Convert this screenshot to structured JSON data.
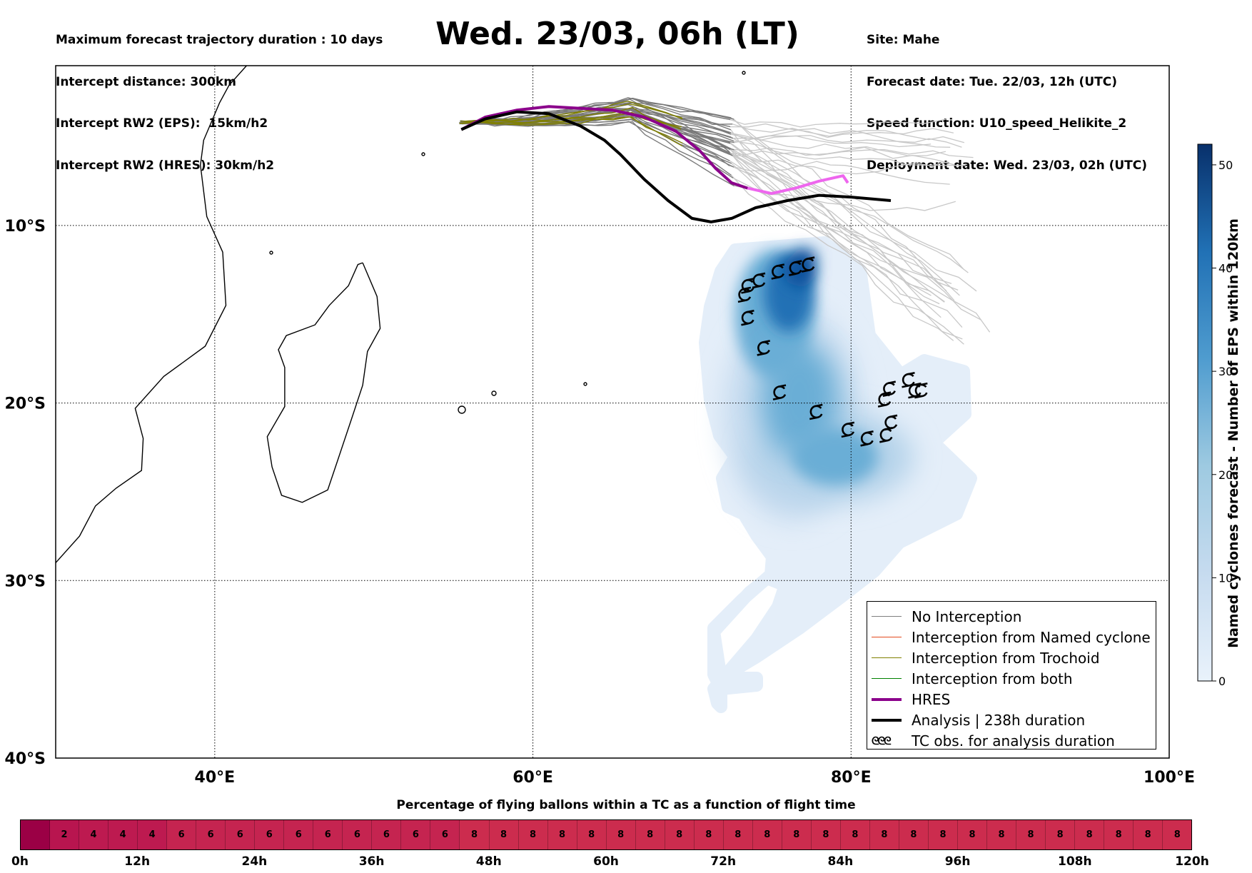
{
  "header_left": [
    "Maximum forecast trajectory duration : 10 days",
    "Intercept distance: 300km",
    "Intercept RW2 (EPS):  15km/h2",
    "Intercept RW2 (HRES): 30km/h2"
  ],
  "header_right": [
    "Site: Mahe",
    "Forecast date: Tue. 22/03, 12h (UTC)",
    "Speed function: U10_speed_Helikite_2",
    "Deployment date: Wed. 23/03, 02h (UTC)"
  ],
  "title": "Wed. 23/03, 06h (LT)",
  "map": {
    "lon_range": [
      30,
      100
    ],
    "lat_range": [
      -40,
      -1
    ],
    "lon_ticks": [
      {
        "value": 40,
        "label": "40°E"
      },
      {
        "value": 60,
        "label": "60°E"
      },
      {
        "value": 80,
        "label": "80°E"
      },
      {
        "value": 100,
        "label": "100°E"
      }
    ],
    "lat_ticks": [
      {
        "value": -10,
        "label": "10°S"
      },
      {
        "value": -20,
        "label": "20°S"
      },
      {
        "value": -30,
        "label": "30°S"
      },
      {
        "value": -40,
        "label": "40°S"
      }
    ],
    "grid": "dotted",
    "analysis_track": [
      [
        55.5,
        -4.6
      ],
      [
        57,
        -4.0
      ],
      [
        59,
        -3.6
      ],
      [
        61,
        -3.7
      ],
      [
        63,
        -4.4
      ],
      [
        64.5,
        -5.2
      ],
      [
        65.5,
        -6.0
      ],
      [
        67,
        -7.4
      ],
      [
        68.5,
        -8.6
      ],
      [
        70,
        -9.6
      ],
      [
        71.2,
        -9.8
      ],
      [
        72.5,
        -9.6
      ],
      [
        74,
        -9.0
      ],
      [
        76,
        -8.6
      ],
      [
        78,
        -8.3
      ],
      [
        80,
        -8.4
      ],
      [
        82.5,
        -8.6
      ]
    ],
    "hres_track": [
      [
        55.5,
        -4.6
      ],
      [
        57,
        -3.9
      ],
      [
        59,
        -3.5
      ],
      [
        61,
        -3.3
      ],
      [
        63,
        -3.4
      ],
      [
        65,
        -3.5
      ],
      [
        67,
        -3.9
      ],
      [
        69,
        -4.7
      ],
      [
        70.5,
        -5.8
      ],
      [
        71.5,
        -6.8
      ],
      [
        72.5,
        -7.6
      ],
      [
        73.5,
        -7.9
      ]
    ],
    "hres_track_end": [
      [
        73.5,
        -7.9
      ],
      [
        75,
        -8.2
      ],
      [
        76.5,
        -7.9
      ],
      [
        78,
        -7.5
      ],
      [
        79.5,
        -7.2
      ],
      [
        79.8,
        -7.6
      ]
    ],
    "tc_obs": [
      [
        73.3,
        -13.9
      ],
      [
        73.5,
        -13.4
      ],
      [
        74.2,
        -13.1
      ],
      [
        75.4,
        -12.6
      ],
      [
        76.5,
        -12.4
      ],
      [
        77.3,
        -12.2
      ],
      [
        73.5,
        -15.2
      ],
      [
        74.5,
        -16.9
      ],
      [
        75.5,
        -19.4
      ],
      [
        77.8,
        -20.5
      ],
      [
        79.8,
        -21.5
      ],
      [
        81.0,
        -22.0
      ],
      [
        82.2,
        -21.8
      ],
      [
        82.5,
        -21.1
      ],
      [
        82.1,
        -19.8
      ],
      [
        82.4,
        -19.2
      ],
      [
        83.6,
        -18.7
      ],
      [
        84.0,
        -19.3
      ],
      [
        84.4,
        -19.3
      ]
    ],
    "density_core": [
      [
        76.8,
        -11.2
      ],
      [
        77.8,
        -11.5
      ],
      [
        77.8,
        -12.8
      ],
      [
        77,
        -13.6
      ],
      [
        76,
        -13.2
      ],
      [
        75.7,
        -12.2
      ]
    ],
    "coast_africa": [
      [
        30,
        -29.0
      ],
      [
        31.5,
        -27.5
      ],
      [
        32.5,
        -25.8
      ],
      [
        33.8,
        -24.8
      ],
      [
        35.4,
        -23.8
      ],
      [
        35.5,
        -22.0
      ],
      [
        35.0,
        -20.3
      ],
      [
        36.8,
        -18.5
      ],
      [
        39.4,
        -16.8
      ],
      [
        40.7,
        -14.5
      ],
      [
        40.5,
        -11.5
      ],
      [
        39.5,
        -9.5
      ],
      [
        39.1,
        -6.6
      ],
      [
        39.3,
        -5.2
      ],
      [
        40.3,
        -3.1
      ],
      [
        40.9,
        -2.1
      ],
      [
        42.0,
        -1.0
      ]
    ],
    "coast_madagascar": [
      [
        49.3,
        -12.1
      ],
      [
        50.2,
        -14.0
      ],
      [
        50.4,
        -15.8
      ],
      [
        49.6,
        -17.1
      ],
      [
        49.3,
        -19.0
      ],
      [
        48.6,
        -20.9
      ],
      [
        47.7,
        -23.3
      ],
      [
        47.1,
        -24.9
      ],
      [
        45.5,
        -25.6
      ],
      [
        44.2,
        -25.2
      ],
      [
        43.6,
        -23.6
      ],
      [
        43.3,
        -21.9
      ],
      [
        44.4,
        -20.2
      ],
      [
        44.4,
        -18.0
      ],
      [
        44.0,
        -17.0
      ],
      [
        44.5,
        -16.2
      ],
      [
        46.3,
        -15.6
      ],
      [
        47.2,
        -14.5
      ],
      [
        48.4,
        -13.4
      ],
      [
        49.0,
        -12.2
      ],
      [
        49.3,
        -12.1
      ]
    ]
  },
  "colorbar": {
    "title": "Named cyclones forecast - Number of EPS within 120km",
    "min": 0,
    "max": 52,
    "ticks": [
      "0",
      "10",
      "20",
      "30",
      "40",
      "50"
    ],
    "colors": [
      "#e2edf8",
      "#c6dbef",
      "#9ecae1",
      "#6baed6",
      "#4292c6",
      "#2171b5",
      "#08519c",
      "#08306b"
    ]
  },
  "legend": [
    {
      "label": "No Interception",
      "color": "#808080",
      "width": 1.5,
      "kind": "line"
    },
    {
      "label": "Interception from Named cyclone",
      "color": "#e34a1e",
      "width": 1.5,
      "kind": "line"
    },
    {
      "label": "Interception from Trochoid",
      "color": "#808000",
      "width": 1.5,
      "kind": "line"
    },
    {
      "label": "Interception from both",
      "color": "#008000",
      "width": 1.5,
      "kind": "line"
    },
    {
      "label": "HRES",
      "color": "#8b008b",
      "width": 4,
      "kind": "line"
    },
    {
      "label": "Analysis | 238h duration",
      "color": "#000000",
      "width": 4,
      "kind": "line"
    },
    {
      "label": "TC obs. for analysis duration",
      "color": "#000000",
      "width": 0,
      "kind": "tc",
      "symbol": "ᘓᘓᘓ"
    }
  ],
  "time_bar": {
    "title": "Percentage of flying ballons within a TC as a function of flight time",
    "values": [
      "",
      "2",
      "4",
      "4",
      "4",
      "6",
      "6",
      "6",
      "6",
      "6",
      "6",
      "6",
      "6",
      "6",
      "6",
      "8",
      "8",
      "8",
      "8",
      "8",
      "8",
      "8",
      "8",
      "8",
      "8",
      "8",
      "8",
      "8",
      "8",
      "8",
      "8",
      "8",
      "8",
      "8",
      "8",
      "8",
      "8",
      "8",
      "8",
      "8"
    ],
    "colors": [
      "#9b0045",
      "#b8154f",
      "#bd1a50",
      "#bd1a50",
      "#bd1a50",
      "#c52450",
      "#c52450",
      "#c52450",
      "#c52450",
      "#c52450",
      "#c52450",
      "#c52450",
      "#c52450",
      "#c52450",
      "#c52450",
      "#cc2c4e",
      "#cc2c4e",
      "#cc2c4e",
      "#cc2c4e",
      "#cc2c4e",
      "#cc2c4e",
      "#cc2c4e",
      "#cc2c4e",
      "#cc2c4e",
      "#cc2c4e",
      "#cc2c4e",
      "#cc2c4e",
      "#cc2c4e",
      "#cc2c4e",
      "#cc2c4e",
      "#cc2c4e",
      "#cc2c4e",
      "#cc2c4e",
      "#cc2c4e",
      "#cc2c4e",
      "#cc2c4e",
      "#cc2c4e",
      "#cc2c4e",
      "#cc2c4e",
      "#cc2c4e"
    ],
    "ticks": [
      "0h",
      "12h",
      "24h",
      "36h",
      "48h",
      "60h",
      "72h",
      "84h",
      "96h",
      "108h",
      "120h"
    ]
  }
}
